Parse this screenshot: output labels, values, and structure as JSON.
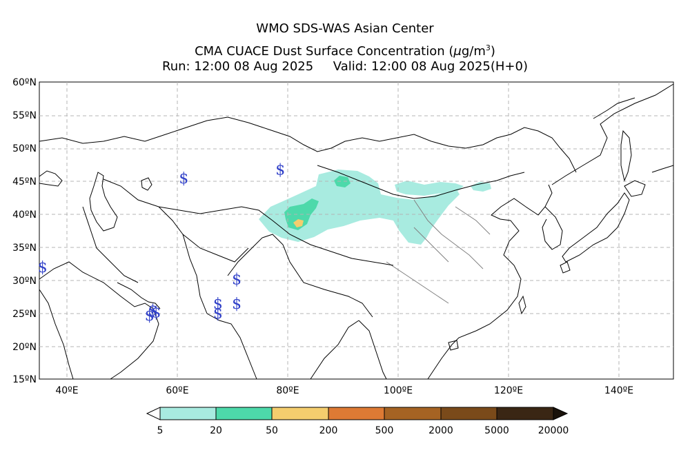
{
  "header": {
    "line1": "WMO SDS-WAS Asian Center",
    "line2_prefix": "CMA CUACE Dust Surface Concentration (",
    "line2_unit_mu": "μ",
    "line2_unit_rest": "g/m",
    "line2_exp": "3",
    "line2_suffix": ")",
    "line3": "Run: 12:00 08 Aug 2025     Valid: 12:00 08 Aug 2025(H+0)"
  },
  "map": {
    "lon_range": [
      35,
      150
    ],
    "lat_range": [
      15,
      60
    ],
    "lat_ticks": [
      "60ºN",
      "55ºN",
      "50ºN",
      "45ºN",
      "40ºN",
      "35ºN",
      "30ºN",
      "25ºN",
      "20ºN",
      "15ºN"
    ],
    "lon_ticks": [
      "40ºE",
      "60ºE",
      "80ºE",
      "100ºE",
      "120ºE",
      "140ºE"
    ],
    "grid": true,
    "markers": [
      {
        "symbol": "$",
        "lon": 61.2,
        "lat": 45.5
      },
      {
        "symbol": "$",
        "lon": 78.7,
        "lat": 46.8
      },
      {
        "symbol": "$",
        "lon": 35.6,
        "lat": 32.0
      },
      {
        "symbol": "$",
        "lon": 70.8,
        "lat": 30.2
      },
      {
        "symbol": "$",
        "lon": 67.4,
        "lat": 26.5
      },
      {
        "symbol": "$",
        "lon": 67.4,
        "lat": 25.0
      },
      {
        "symbol": "$",
        "lon": 70.8,
        "lat": 26.5
      },
      {
        "symbol": "$",
        "lon": 55.6,
        "lat": 25.5
      },
      {
        "symbol": "$",
        "lon": 56.2,
        "lat": 25.2
      },
      {
        "symbol": "$",
        "lon": 55.0,
        "lat": 24.7
      }
    ]
  },
  "colorbar": {
    "labels": [
      "5",
      "20",
      "50",
      "200",
      "500",
      "2000",
      "5000",
      "20000"
    ],
    "colors": [
      "#a8ebe0",
      "#4dd9aa",
      "#f4cd6e",
      "#dd7a34",
      "#a56323",
      "#7a4a1a",
      "#3a2614"
    ]
  },
  "dust_colors": {
    "low": "#a8ebe0",
    "mid": "#4dd9aa",
    "high": "#f4cd6e"
  }
}
